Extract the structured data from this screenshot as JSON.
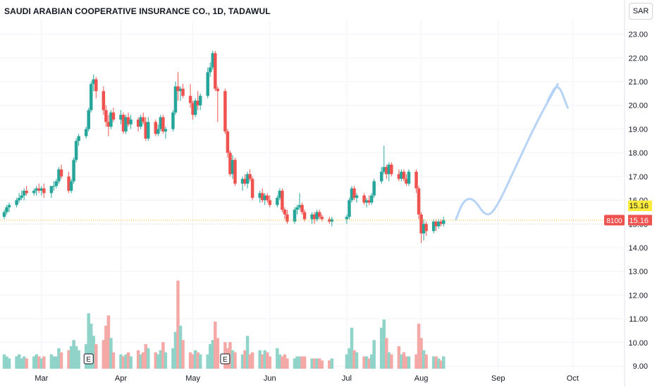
{
  "header": {
    "title": "SAUDI ARABIAN COOPERATIVE INSURANCE CO., 1D, TADAWUL",
    "currency": "SAR"
  },
  "price_scale": {
    "ticks": [
      "23.00",
      "22.00",
      "21.00",
      "20.00",
      "19.00",
      "18.00",
      "17.00",
      "16.00",
      "15.00",
      "14.00",
      "13.00",
      "12.00",
      "11.00",
      "10.00",
      "9.00"
    ],
    "last_price_label": "15.16",
    "crosshair_label": "15.16",
    "volume_label": "8100"
  },
  "time_scale": {
    "ticks": [
      "Mar",
      "Apr",
      "May",
      "Jun",
      "Jul",
      "Aug",
      "Sep",
      "Oct"
    ]
  },
  "markers": [
    "E",
    "E"
  ],
  "colors": {
    "up": "#26a69a",
    "down": "#ef5350",
    "up_volume": "#8fd3c9",
    "down_volume": "#f4a9a7",
    "last_price_line": "#f5b82e",
    "last_price_badge": "#ffeb3b",
    "drawing": "#b7d3f5",
    "axis_text": "#131722",
    "grid": "#f0f3fa"
  },
  "drawings": [
    {
      "type": "brush",
      "note": "projected path",
      "points": [
        [
          "2023-08-15",
          15.2
        ],
        [
          "2023-08-18",
          16.0
        ],
        [
          "2023-08-22",
          16.1
        ],
        [
          "2023-08-27",
          15.3
        ],
        [
          "2023-08-31",
          15.6
        ],
        [
          "2023-09-08",
          17.4
        ],
        [
          "2023-09-17",
          19.4
        ],
        [
          "2023-09-25",
          20.9
        ]
      ]
    },
    {
      "type": "brush",
      "note": "arrow head",
      "points": [
        [
          "2023-09-21",
          20.2
        ],
        [
          "2023-09-25",
          21.0
        ],
        [
          "2023-09-29",
          19.9
        ]
      ]
    }
  ],
  "chart_data": {
    "type": "candlestick",
    "title": "SAUDI ARABIAN COOPERATIVE INSURANCE CO., 1D, TADAWUL",
    "ylim": [
      9.0,
      23.3
    ],
    "yticks": [
      9,
      10,
      11,
      12,
      13,
      14,
      15,
      16,
      17,
      18,
      19,
      20,
      21,
      22,
      23
    ],
    "xlim": [
      "2023-02-14",
      "2023-10-08"
    ],
    "xticks": [
      [
        "2023-03-01",
        "Mar"
      ],
      [
        "2023-04-02",
        "Apr"
      ],
      [
        "2023-05-01",
        "May"
      ],
      [
        "2023-06-01",
        "Jun"
      ],
      [
        "2023-07-02",
        "Jul"
      ],
      [
        "2023-08-01",
        "Aug"
      ],
      [
        "2023-09-01",
        "Sep"
      ],
      [
        "2023-10-01",
        "Oct"
      ]
    ],
    "volume_max": 4.5,
    "last_price": 15.16,
    "earnings": [
      "2023-03-20",
      "2023-05-14"
    ],
    "candles": [
      [
        "2023-02-14",
        15.3,
        15.6,
        15.2,
        15.5,
        0.7
      ],
      [
        "2023-02-15",
        15.5,
        15.8,
        15.4,
        15.7,
        0.6
      ],
      [
        "2023-02-16",
        15.7,
        15.9,
        15.5,
        15.8,
        0.5
      ],
      [
        "2023-02-19",
        15.8,
        16.1,
        15.7,
        16.0,
        0.6
      ],
      [
        "2023-02-20",
        16.0,
        16.3,
        15.9,
        16.1,
        0.7
      ],
      [
        "2023-02-21",
        16.1,
        16.4,
        16.0,
        16.2,
        0.5
      ],
      [
        "2023-02-22",
        16.2,
        16.5,
        16.0,
        16.4,
        0.6
      ],
      [
        "2023-02-23",
        16.4,
        16.6,
        16.2,
        16.3,
        0.5
      ],
      [
        "2023-02-26",
        16.3,
        16.5,
        16.2,
        16.4,
        0.6
      ],
      [
        "2023-02-27",
        16.4,
        16.6,
        16.2,
        16.5,
        0.7
      ],
      [
        "2023-02-28",
        16.5,
        16.7,
        16.3,
        16.4,
        0.6
      ],
      [
        "2023-03-01",
        16.4,
        16.6,
        16.2,
        16.5,
        0.5
      ],
      [
        "2023-03-02",
        16.5,
        16.7,
        16.1,
        16.3,
        0.6
      ],
      [
        "2023-03-05",
        16.3,
        16.6,
        16.1,
        16.6,
        0.7
      ],
      [
        "2023-03-06",
        16.6,
        16.8,
        16.4,
        16.6,
        0.6
      ],
      [
        "2023-03-07",
        16.6,
        16.9,
        16.5,
        16.8,
        0.6
      ],
      [
        "2023-03-08",
        16.8,
        17.4,
        16.7,
        17.3,
        1.0
      ],
      [
        "2023-03-09",
        17.3,
        17.5,
        16.9,
        17.0,
        0.8
      ],
      [
        "2023-03-12",
        17.0,
        17.2,
        16.3,
        16.4,
        0.9
      ],
      [
        "2023-03-13",
        16.4,
        16.9,
        16.3,
        16.8,
        1.1
      ],
      [
        "2023-03-14",
        16.8,
        17.8,
        16.7,
        17.7,
        1.4
      ],
      [
        "2023-03-15",
        17.7,
        18.6,
        17.6,
        18.5,
        1.1
      ],
      [
        "2023-03-16",
        18.5,
        18.8,
        18.3,
        18.7,
        0.9
      ],
      [
        "2023-03-19",
        18.7,
        19.1,
        18.6,
        19.0,
        1.2
      ],
      [
        "2023-03-20",
        19.0,
        19.9,
        18.9,
        19.8,
        2.7
      ],
      [
        "2023-03-21",
        19.8,
        21.0,
        19.7,
        20.9,
        2.2
      ],
      [
        "2023-03-22",
        20.9,
        21.3,
        20.6,
        21.1,
        1.6
      ],
      [
        "2023-03-23",
        21.1,
        21.2,
        20.3,
        20.6,
        1.2
      ],
      [
        "2023-03-26",
        20.6,
        20.8,
        19.6,
        19.8,
        1.4
      ],
      [
        "2023-03-27",
        19.8,
        20.0,
        19.1,
        19.3,
        2.1
      ],
      [
        "2023-03-28",
        19.3,
        19.6,
        18.7,
        19.1,
        2.6
      ],
      [
        "2023-03-29",
        19.1,
        19.8,
        19.0,
        19.7,
        1.5
      ],
      [
        "2023-03-30",
        19.7,
        19.9,
        19.3,
        19.4,
        0.8
      ],
      [
        "2023-04-02",
        19.4,
        19.8,
        19.2,
        19.6,
        0.7
      ],
      [
        "2023-04-03",
        19.6,
        19.7,
        18.8,
        18.9,
        0.6
      ],
      [
        "2023-04-04",
        18.9,
        19.6,
        18.8,
        19.5,
        0.7
      ],
      [
        "2023-04-05",
        19.5,
        19.7,
        19.1,
        19.2,
        0.8
      ],
      [
        "2023-04-06",
        19.2,
        19.6,
        19.0,
        19.4,
        0.6
      ],
      [
        "2023-04-09",
        19.4,
        19.5,
        18.9,
        19.1,
        0.9
      ],
      [
        "2023-04-10",
        19.1,
        19.6,
        19.0,
        19.5,
        0.7
      ],
      [
        "2023-04-11",
        19.5,
        19.7,
        19.2,
        19.3,
        0.8
      ],
      [
        "2023-04-12",
        19.3,
        19.5,
        18.5,
        18.6,
        1.2
      ],
      [
        "2023-04-13",
        18.6,
        19.5,
        18.5,
        19.3,
        1.0
      ],
      [
        "2023-04-16",
        19.3,
        19.4,
        18.7,
        18.8,
        0.8
      ],
      [
        "2023-04-17",
        18.8,
        19.2,
        18.7,
        19.0,
        0.7
      ],
      [
        "2023-04-18",
        19.0,
        19.6,
        18.9,
        19.5,
        0.9
      ],
      [
        "2023-04-19",
        19.5,
        19.6,
        18.8,
        18.9,
        1.3
      ],
      [
        "2023-04-20",
        18.9,
        19.1,
        18.6,
        19.0,
        0.8
      ],
      [
        "2023-04-23",
        19.0,
        19.8,
        18.9,
        19.7,
        1.0
      ],
      [
        "2023-04-24",
        19.7,
        21.0,
        19.6,
        20.8,
        1.8
      ],
      [
        "2023-04-25",
        20.8,
        21.4,
        20.2,
        20.6,
        4.3
      ],
      [
        "2023-04-26",
        20.6,
        20.8,
        20.2,
        20.7,
        2.1
      ],
      [
        "2023-04-27",
        20.7,
        20.9,
        20.3,
        20.4,
        1.4
      ],
      [
        "2023-04-30",
        20.4,
        20.9,
        19.9,
        20.1,
        0.8
      ],
      [
        "2023-05-01",
        20.1,
        20.2,
        19.4,
        19.6,
        0.7
      ],
      [
        "2023-05-02",
        19.6,
        20.3,
        19.5,
        20.2,
        0.9
      ],
      [
        "2023-05-03",
        20.2,
        20.6,
        19.8,
        20.0,
        0.8
      ],
      [
        "2023-05-04",
        20.0,
        20.5,
        19.8,
        20.4,
        0.7
      ],
      [
        "2023-05-07",
        20.4,
        21.6,
        20.3,
        21.4,
        0.7
      ],
      [
        "2023-05-08",
        21.4,
        21.8,
        21.2,
        21.6,
        1.2
      ],
      [
        "2023-05-09",
        21.6,
        22.3,
        21.5,
        22.2,
        1.4
      ],
      [
        "2023-05-10",
        22.2,
        22.3,
        20.6,
        20.7,
        2.3
      ],
      [
        "2023-05-11",
        20.7,
        20.8,
        19.3,
        20.6,
        1.5
      ],
      [
        "2023-05-14",
        20.6,
        20.7,
        18.8,
        18.9,
        1.3
      ],
      [
        "2023-05-15",
        18.9,
        19.0,
        17.8,
        18.0,
        1.0
      ],
      [
        "2023-05-16",
        18.0,
        18.1,
        17.0,
        17.1,
        1.3
      ],
      [
        "2023-05-17",
        17.1,
        17.9,
        16.9,
        17.7,
        0.9
      ],
      [
        "2023-05-18",
        17.7,
        17.8,
        16.6,
        16.7,
        0.8
      ],
      [
        "2023-05-21",
        16.7,
        17.0,
        16.4,
        16.9,
        0.7
      ],
      [
        "2023-05-22",
        16.9,
        17.1,
        16.6,
        16.7,
        0.9
      ],
      [
        "2023-05-23",
        16.7,
        17.2,
        16.5,
        17.1,
        1.6
      ],
      [
        "2023-05-24",
        17.1,
        17.3,
        16.8,
        16.9,
        0.7
      ],
      [
        "2023-05-25",
        16.9,
        17.0,
        16.0,
        16.1,
        0.8
      ],
      [
        "2023-05-28",
        16.1,
        16.4,
        15.9,
        16.3,
        0.9
      ],
      [
        "2023-05-29",
        16.3,
        16.5,
        15.9,
        16.0,
        0.7
      ],
      [
        "2023-05-30",
        16.0,
        16.3,
        15.8,
        16.2,
        0.9
      ],
      [
        "2023-05-31",
        16.2,
        16.3,
        15.9,
        16.0,
        0.8
      ],
      [
        "2023-06-01",
        16.0,
        16.2,
        15.7,
        15.8,
        0.6
      ],
      [
        "2023-06-04",
        15.8,
        16.2,
        15.7,
        16.1,
        1.0
      ],
      [
        "2023-06-05",
        16.1,
        16.5,
        16.0,
        16.4,
        0.7
      ],
      [
        "2023-06-06",
        16.4,
        16.5,
        15.5,
        15.6,
        0.6
      ],
      [
        "2023-06-07",
        15.6,
        15.7,
        15.2,
        15.4,
        0.7
      ],
      [
        "2023-06-08",
        15.4,
        15.6,
        15.0,
        15.1,
        0.5
      ],
      [
        "2023-06-11",
        15.1,
        15.7,
        15.0,
        15.6,
        0.5
      ],
      [
        "2023-06-12",
        15.6,
        15.8,
        15.4,
        15.7,
        0.6
      ],
      [
        "2023-06-13",
        15.7,
        16.3,
        15.6,
        15.8,
        0.6
      ],
      [
        "2023-06-14",
        15.8,
        15.9,
        15.4,
        15.5,
        0.6
      ],
      [
        "2023-06-15",
        15.5,
        15.6,
        15.1,
        15.2,
        0.6
      ],
      [
        "2023-06-18",
        15.2,
        15.5,
        15.0,
        15.4,
        0.5
      ],
      [
        "2023-06-19",
        15.4,
        15.5,
        15.0,
        15.2,
        0.5
      ],
      [
        "2023-06-20",
        15.2,
        15.6,
        15.1,
        15.5,
        0.5
      ],
      [
        "2023-06-21",
        15.5,
        15.6,
        15.2,
        15.3,
        0.5
      ],
      [
        "2023-06-22",
        15.3,
        15.4,
        15.1,
        15.2,
        0.4
      ],
      [
        "2023-06-25",
        15.2,
        15.3,
        15.0,
        15.1,
        0.4
      ],
      [
        "2023-06-26",
        15.1,
        15.3,
        14.9,
        15.2,
        0.5
      ],
      [
        "2023-07-02",
        15.2,
        15.4,
        15.0,
        15.3,
        0.7
      ],
      [
        "2023-07-03",
        15.3,
        16.1,
        15.2,
        16.0,
        1.0
      ],
      [
        "2023-07-04",
        16.0,
        16.6,
        15.9,
        16.5,
        2.0
      ],
      [
        "2023-07-05",
        16.5,
        16.6,
        16.0,
        16.1,
        0.9
      ],
      [
        "2023-07-06",
        16.1,
        16.3,
        15.9,
        16.2,
        0.8
      ],
      [
        "2023-07-09",
        16.2,
        16.3,
        15.8,
        15.9,
        0.6
      ],
      [
        "2023-07-10",
        15.9,
        16.1,
        15.7,
        16.0,
        0.6
      ],
      [
        "2023-07-11",
        16.0,
        16.2,
        15.8,
        15.9,
        0.5
      ],
      [
        "2023-07-12",
        15.9,
        16.3,
        15.8,
        16.2,
        0.7
      ],
      [
        "2023-07-13",
        16.2,
        16.9,
        16.1,
        16.8,
        1.4
      ],
      [
        "2023-07-16",
        16.8,
        17.4,
        16.7,
        17.2,
        2.0
      ],
      [
        "2023-07-17",
        17.2,
        18.3,
        17.1,
        17.4,
        2.4
      ],
      [
        "2023-07-18",
        17.4,
        17.5,
        16.9,
        17.1,
        1.5
      ],
      [
        "2023-07-19",
        17.1,
        17.6,
        16.8,
        17.5,
        0.8
      ],
      [
        "2023-07-20",
        17.5,
        17.6,
        17.0,
        17.1,
        0.7
      ],
      [
        "2023-07-23",
        17.1,
        17.3,
        16.8,
        16.9,
        1.1
      ],
      [
        "2023-07-24",
        16.9,
        17.3,
        16.8,
        17.2,
        0.7
      ],
      [
        "2023-07-25",
        17.2,
        17.3,
        16.8,
        16.9,
        0.8
      ],
      [
        "2023-07-26",
        16.9,
        17.1,
        16.6,
        16.7,
        0.6
      ],
      [
        "2023-07-27",
        16.7,
        17.3,
        16.6,
        17.2,
        0.6
      ],
      [
        "2023-07-30",
        17.2,
        17.3,
        16.3,
        16.5,
        0.7
      ],
      [
        "2023-07-31",
        16.5,
        16.6,
        15.2,
        15.4,
        2.2
      ],
      [
        "2023-08-01",
        15.4,
        15.5,
        14.2,
        14.6,
        1.5
      ],
      [
        "2023-08-02",
        14.6,
        15.2,
        14.3,
        15.0,
        0.9
      ],
      [
        "2023-08-03",
        15.0,
        15.1,
        14.5,
        14.7,
        0.7
      ],
      [
        "2023-08-06",
        14.7,
        15.2,
        14.6,
        15.1,
        0.6
      ],
      [
        "2023-08-07",
        15.1,
        15.2,
        14.7,
        14.9,
        0.6
      ],
      [
        "2023-08-08",
        14.9,
        15.2,
        14.8,
        15.1,
        0.5
      ],
      [
        "2023-08-09",
        15.1,
        15.2,
        14.9,
        15.0,
        0.4
      ],
      [
        "2023-08-10",
        15.0,
        15.3,
        14.9,
        15.16,
        0.6
      ]
    ]
  }
}
